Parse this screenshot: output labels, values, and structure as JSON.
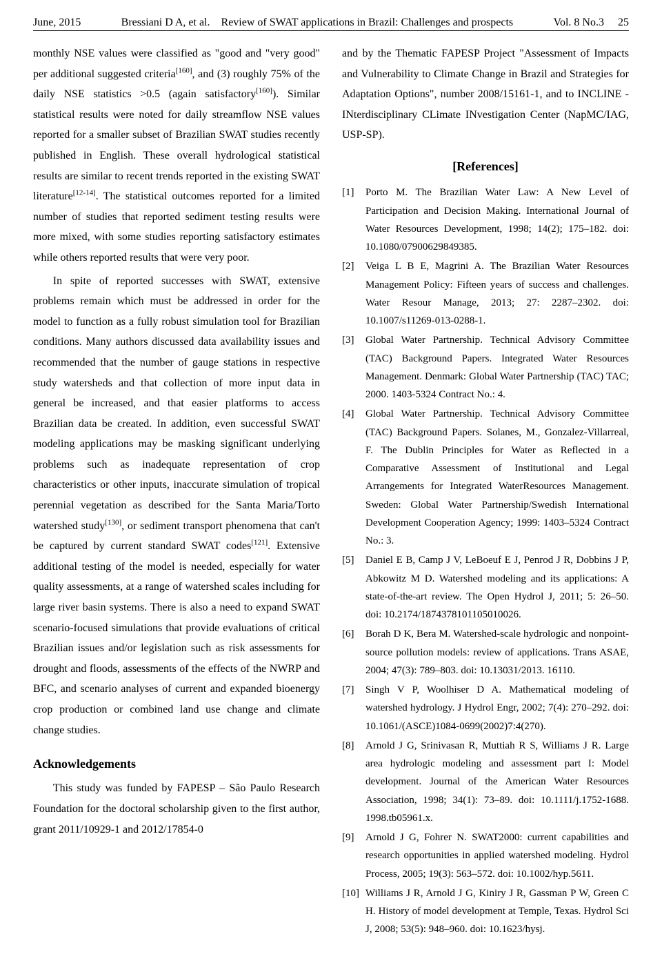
{
  "header": {
    "left": "June, 2015",
    "center_author": "Bressiani D A, et al.",
    "center_title": "Review of SWAT applications in Brazil: Challenges and prospects",
    "right": "Vol. 8 No.3",
    "page": "25"
  },
  "left_column": {
    "p1_a": "monthly NSE values were classified as \"good and \"very good\" per additional suggested criteria",
    "p1_sup1": "[160]",
    "p1_b": ", and (3) roughly 75% of the daily NSE statistics >0.5 (again satisfactory",
    "p1_sup2": "[160]",
    "p1_c": ").  Similar statistical results were noted for daily streamflow NSE values reported for a smaller subset of Brazilian SWAT studies recently published in English.  These overall hydrological statistical results are similar to recent trends reported in the existing SWAT literature",
    "p1_sup3": "[12-14]",
    "p1_d": ".  The statistical outcomes reported for a limited number of studies that reported sediment testing results were more mixed, with some studies reporting satisfactory estimates while others reported results that were very poor.",
    "p2_a": "In spite of reported successes with SWAT, extensive problems remain which must be addressed in order for the model to function as a fully robust simulation tool for Brazilian conditions.  Many authors discussed data availability issues and recommended that the number of gauge stations in respective study watersheds and that collection of more input data in general be increased, and that easier platforms to access Brazilian data be created.  In addition, even successful SWAT modeling applications may be masking significant underlying problems such as inadequate representation of crop characteristics or other inputs, inaccurate simulation of tropical perennial vegetation as described for the Santa Maria/Torto watershed study",
    "p2_sup1": "[130]",
    "p2_b": ", or sediment transport phenomena that can't be captured by current standard SWAT codes",
    "p2_sup2": "[121]",
    "p2_c": ".  Extensive additional testing of the model is needed, especially for water quality assessments, at a range of watershed scales including for large river basin systems.  There is also a need to expand SWAT scenario-focused simulations that provide evaluations of critical Brazilian issues and/or legislation such as risk assessments for drought and floods, assessments of the effects of the NWRP and BFC, and scenario analyses of current and expanded bioenergy crop production or combined land use change and climate change studies.",
    "ack_title": "Acknowledgements",
    "ack_body": "This study was funded by FAPESP – São Paulo Research Foundation for the doctoral scholarship given to the first author, grant 2011/10929-1 and 2012/17854-0"
  },
  "right_column": {
    "cont": "and by the Thematic FAPESP Project \"Assessment of Impacts and Vulnerability to Climate Change in Brazil and Strategies for Adaptation Options\", number 2008/15161-1, and to INCLINE - INterdisciplinary CLimate INvestigation Center (NapMC/IAG, USP-SP).",
    "refs_title": "[References]",
    "refs": [
      {
        "n": "[1]",
        "t": "Porto M.  The Brazilian Water Law: A New Level of Participation and Decision Making.  International Journal of Water Resources Development, 1998; 14(2); 175–182. doi: 10.1080/07900629849385."
      },
      {
        "n": "[2]",
        "t": "Veiga L B E, Magrini A.  The Brazilian Water Resources Management Policy: Fifteen years of success and challenges. Water Resour Manage, 2013; 27: 2287–2302. doi: 10.1007/s11269-013-0288-1."
      },
      {
        "n": "[3]",
        "t": "Global Water Partnership.  Technical Advisory Committee (TAC) Background Papers. Integrated Water Resources Management.  Denmark: Global Water Partnership (TAC) TAC; 2000. 1403-5324 Contract No.: 4."
      },
      {
        "n": "[4]",
        "t": "Global Water Partnership.  Technical Advisory Committee (TAC) Background Papers. Solanes, M., Gonzalez-Villarreal, F. The Dublin Principles for Water as Reflected in a Comparative Assessment of Institutional and Legal Arrangements for Integrated WaterResources Management. Sweden: Global Water Partnership/Swedish International Development Cooperation Agency; 1999: 1403–5324 Contract No.: 3."
      },
      {
        "n": "[5]",
        "t": "Daniel E B, Camp J V, LeBoeuf E J, Penrod J R, Dobbins J P, Abkowitz M D.  Watershed modeling and its applications: A state-of-the-art review.  The Open Hydrol J, 2011; 5: 26–50. doi: 10.2174/1874378101105010026."
      },
      {
        "n": "[6]",
        "t": "Borah D K, Bera M.  Watershed-scale hydrologic and nonpoint-source pollution models: review of applications. Trans ASAE, 2004; 47(3): 789–803. doi: 10.13031/2013. 16110."
      },
      {
        "n": "[7]",
        "t": "Singh V P, Woolhiser D A.  Mathematical modeling of watershed hydrology.  J Hydrol Engr, 2002; 7(4): 270–292. doi: 10.1061/(ASCE)1084-0699(2002)7:4(270)."
      },
      {
        "n": "[8]",
        "t": "Arnold J G, Srinivasan R, Muttiah R S, Williams J R.  Large area hydrologic modeling and assessment part I: Model development.  Journal of the American Water Resources Association, 1998; 34(1): 73–89. doi: 10.1111/j.1752-1688. 1998.tb05961.x."
      },
      {
        "n": "[9]",
        "t": "Arnold J G, Fohrer N.  SWAT2000: current capabilities and research opportunities in applied watershed modeling. Hydrol Process, 2005; 19(3): 563–572. doi: 10.1002/hyp.5611."
      },
      {
        "n": "[10]",
        "t": "Williams J R, Arnold J G, Kiniry J R, Gassman P W, Green C H.  History of model development at Temple, Texas. Hydrol Sci J, 2008; 53(5): 948–960. doi: 10.1623/hysj."
      }
    ]
  }
}
